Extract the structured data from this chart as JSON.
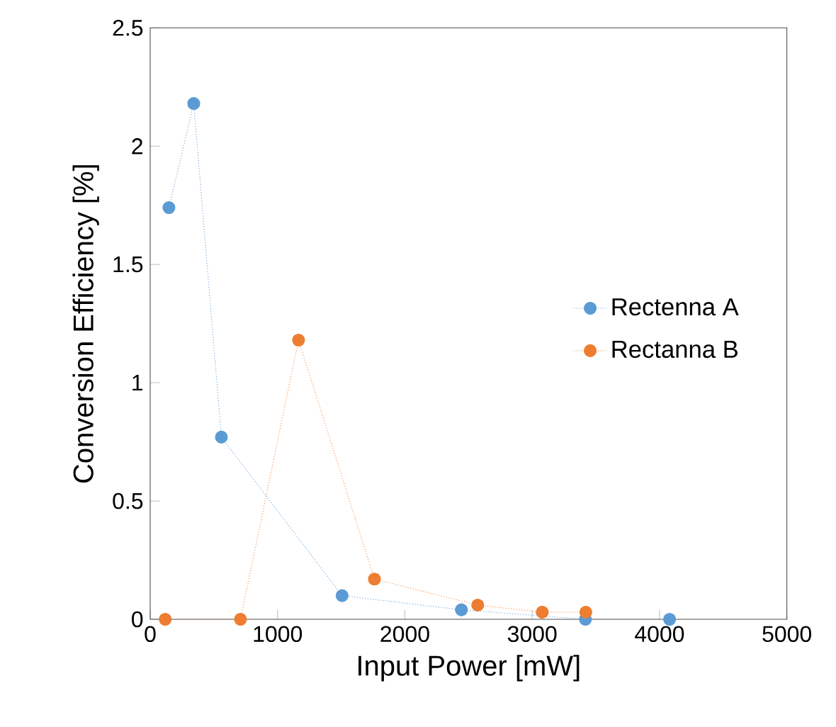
{
  "chart_data": {
    "type": "line",
    "xlabel": "Input Power [mW]",
    "ylabel": "Conversion Efficiency [%]",
    "xlim": [
      0,
      5000
    ],
    "xticks": [
      0,
      1000,
      2000,
      3000,
      4000,
      5000
    ],
    "ylim": [
      0,
      2.5
    ],
    "yticks": [
      0,
      0.5,
      1,
      1.5,
      2,
      2.5
    ],
    "grid": false,
    "legend": "right",
    "marker": "circle",
    "line_style": "dotted",
    "series": [
      {
        "name": "Rectenna A",
        "color": "#5b9bd5",
        "x": [
          147,
          342,
          559,
          1507,
          2444,
          3418,
          4079
        ],
        "values": [
          1.74,
          2.18,
          0.77,
          0.1,
          0.04,
          0,
          0
        ]
      },
      {
        "name": "Rectanna B",
        "color": "#ed7d31",
        "x": [
          118,
          709,
          1165,
          1761,
          2572,
          3079,
          3421
        ],
        "values": [
          0,
          0,
          1.18,
          0.17,
          0.06,
          0.03,
          0.03
        ]
      }
    ]
  }
}
